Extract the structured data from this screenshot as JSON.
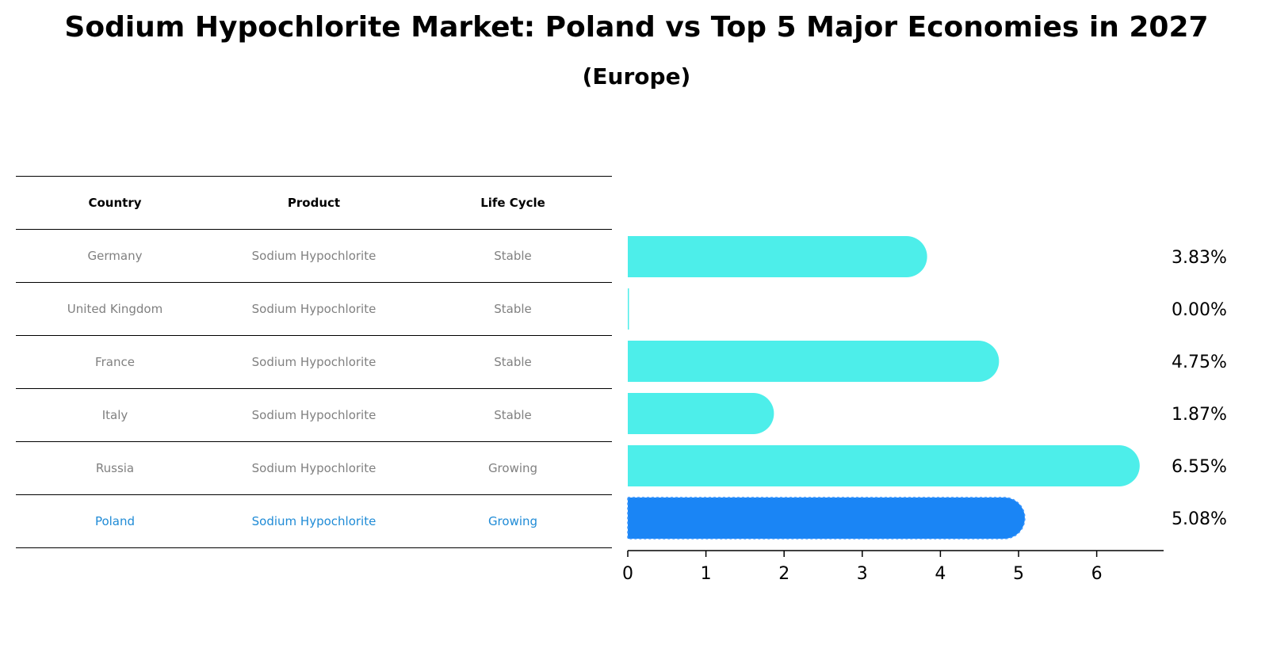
{
  "chart_data": {
    "type": "bar",
    "orientation": "horizontal",
    "title": "Sodium Hypochlorite Market: Poland vs Top 5 Major Economies in 2027",
    "subtitle": "(Europe)",
    "categories": [
      "Germany",
      "United Kingdom",
      "France",
      "Italy",
      "Russia",
      "Poland"
    ],
    "values": [
      3.83,
      0.0,
      4.75,
      1.87,
      6.55,
      5.08
    ],
    "value_labels": [
      "3.83%",
      "0.00%",
      "4.75%",
      "1.87%",
      "6.55%",
      "5.08%"
    ],
    "highlight": "Poland",
    "xlim": [
      0,
      6.88
    ],
    "xticks": [
      0,
      1,
      2,
      3,
      4,
      5,
      6
    ],
    "colors": {
      "default": "#4deeea",
      "highlight": "#1a85f5"
    }
  },
  "table": {
    "headers": [
      "Country",
      "Product",
      "Life Cycle"
    ],
    "rows": [
      [
        "Germany",
        "Sodium Hypochlorite",
        "Stable"
      ],
      [
        "United Kingdom",
        "Sodium Hypochlorite",
        "Stable"
      ],
      [
        "France",
        "Sodium Hypochlorite",
        "Stable"
      ],
      [
        "Italy",
        "Sodium Hypochlorite",
        "Stable"
      ],
      [
        "Russia",
        "Sodium Hypochlorite",
        "Growing"
      ],
      [
        "Poland",
        "Sodium Hypochlorite",
        "Growing"
      ]
    ],
    "highlight_color": "#1f8bd6"
  }
}
